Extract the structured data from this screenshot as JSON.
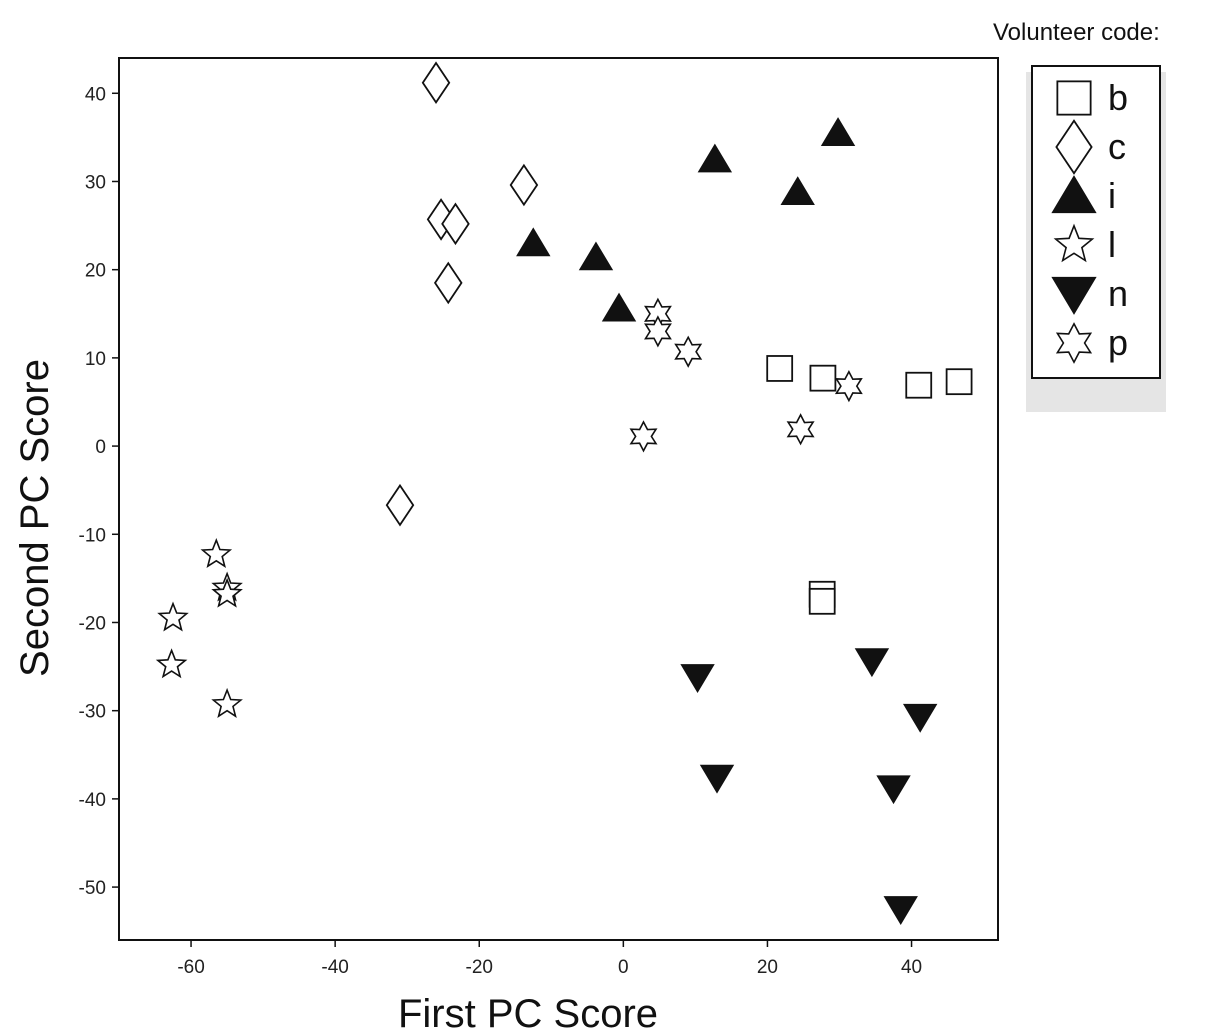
{
  "chart_data": {
    "type": "scatter",
    "title": "",
    "xlabel": "First PC Score",
    "ylabel": "Second PC Score",
    "xlim": [
      -70,
      52
    ],
    "ylim": [
      -56,
      44
    ],
    "xticks": [
      -60,
      -40,
      -20,
      0,
      20,
      40
    ],
    "yticks": [
      40,
      30,
      20,
      10,
      0,
      -10,
      -20,
      -30,
      -40,
      -50
    ],
    "grid": false,
    "legend": {
      "title": "Volunteer code:",
      "placement": "top-right outside"
    },
    "series": [
      {
        "name": "b",
        "marker": "square-open",
        "points": [
          [
            21.7,
            8.8
          ],
          [
            27.7,
            7.7
          ],
          [
            41,
            6.9
          ],
          [
            46.6,
            7.3
          ],
          [
            27.6,
            -16.8
          ],
          [
            27.6,
            -17.6
          ]
        ]
      },
      {
        "name": "c",
        "marker": "diamond-open",
        "points": [
          [
            -26,
            41.2
          ],
          [
            -25.3,
            25.7
          ],
          [
            -23.3,
            25.2
          ],
          [
            -24.3,
            18.5
          ],
          [
            -13.8,
            29.6
          ],
          [
            -31,
            -6.7
          ]
        ]
      },
      {
        "name": "i",
        "marker": "triangle-up-filled",
        "points": [
          [
            29.8,
            35.5
          ],
          [
            12.7,
            32.5
          ],
          [
            24.2,
            28.8
          ],
          [
            -12.5,
            23.0
          ],
          [
            -3.8,
            21.4
          ],
          [
            -0.6,
            15.6
          ]
        ]
      },
      {
        "name": "l",
        "marker": "star-five-open",
        "points": [
          [
            -56.5,
            -12.3
          ],
          [
            -55,
            -16.1
          ],
          [
            -55,
            -16.8
          ],
          [
            -62.5,
            -19.5
          ],
          [
            -62.7,
            -24.8
          ],
          [
            -55,
            -29.3
          ]
        ]
      },
      {
        "name": "n",
        "marker": "triangle-down-filled",
        "points": [
          [
            10.3,
            -26.2
          ],
          [
            34.5,
            -24.4
          ],
          [
            41.2,
            -30.7
          ],
          [
            13,
            -37.6
          ],
          [
            37.5,
            -38.8
          ],
          [
            38.5,
            -52.5
          ]
        ]
      },
      {
        "name": "p",
        "marker": "star-six-open",
        "points": [
          [
            4.8,
            15.0
          ],
          [
            4.8,
            13.0
          ],
          [
            9,
            10.7
          ],
          [
            31.3,
            6.8
          ],
          [
            24.6,
            1.9
          ],
          [
            2.8,
            1.1
          ]
        ]
      }
    ]
  }
}
